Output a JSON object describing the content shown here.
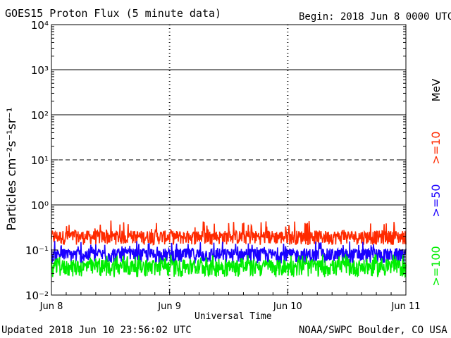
{
  "chart_data": {
    "type": "line",
    "title": "GOES15 Proton Flux (5 minute data)",
    "begin_label": "Begin: 2018 Jun 8 0000 UTC",
    "xlabel": "Universal Time",
    "ylabel": "Particles cm⁻²s⁻¹sr⁻¹",
    "yscale": "log",
    "ylim": [
      0.01,
      10000
    ],
    "y_ticks": [
      "10⁻²",
      "10⁻¹",
      "10⁰",
      "10¹",
      "10²",
      "10³",
      "10⁴"
    ],
    "x_ticks": [
      "Jun 8",
      "Jun 9",
      "Jun 10",
      "Jun 11"
    ],
    "xlim": [
      "2018-06-08",
      "2018-06-11"
    ],
    "grid": {
      "solid_levels": [
        1,
        100,
        1000
      ],
      "dashed_levels": [
        10
      ]
    },
    "energy_unit": "MeV",
    "series": [
      {
        "name": ">=10",
        "color": "#ff2a00",
        "baseline": 0.2,
        "typical_range": [
          0.13,
          0.45
        ]
      },
      {
        "name": ">=50",
        "color": "#1a00ff",
        "baseline": 0.08,
        "typical_range": [
          0.05,
          0.16
        ]
      },
      {
        "name": ">=100",
        "color": "#00ee00",
        "baseline": 0.045,
        "typical_range": [
          0.025,
          0.08
        ]
      }
    ]
  },
  "footer": {
    "updated": "Updated 2018 Jun 10 23:56:02 UTC",
    "credit": "NOAA/SWPC Boulder, CO USA"
  }
}
